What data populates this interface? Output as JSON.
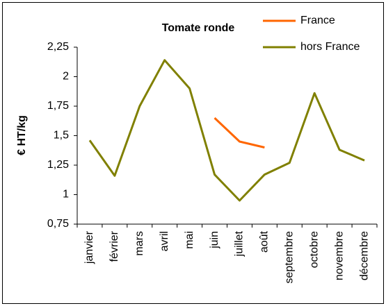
{
  "chart_data": {
    "type": "line",
    "title": "Tomate ronde",
    "y_label": "€ HT/kg",
    "categories": [
      "janvier",
      "février",
      "mars",
      "avril",
      "mai",
      "juin",
      "juillet",
      "août",
      "septembre",
      "octobre",
      "novembre",
      "décembre"
    ],
    "series": [
      {
        "name": "France",
        "color": "#ff6600",
        "values": [
          null,
          null,
          null,
          null,
          null,
          1.65,
          1.45,
          1.4,
          null,
          null,
          null,
          null
        ]
      },
      {
        "name": "hors France",
        "color": "#808000",
        "values": [
          1.46,
          1.16,
          1.75,
          2.14,
          1.9,
          1.17,
          0.95,
          1.17,
          1.27,
          1.86,
          1.38,
          1.29
        ]
      }
    ],
    "ylim": [
      0.75,
      2.25
    ],
    "yticks": [
      {
        "value": 0.75,
        "label": "0,75"
      },
      1,
      {
        "value": 1.25,
        "label": "1,25"
      },
      {
        "value": 1.5,
        "label": "1,5"
      },
      {
        "value": 1.75,
        "label": "1,75"
      },
      2,
      {
        "value": 2.25,
        "label": "2,25"
      }
    ]
  }
}
